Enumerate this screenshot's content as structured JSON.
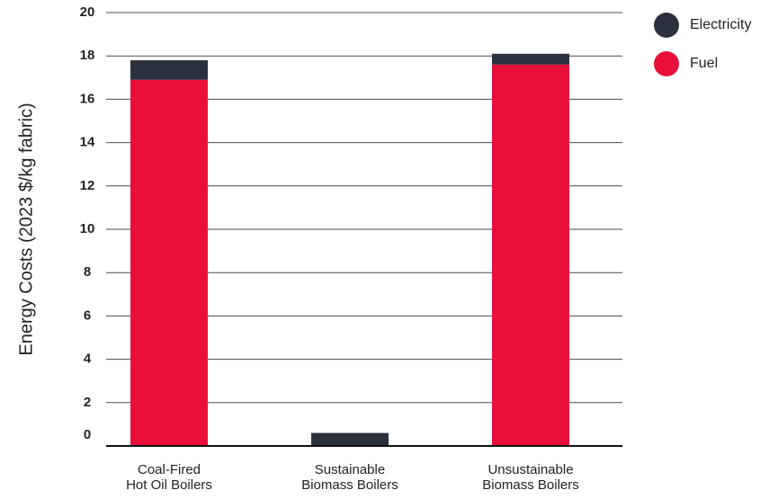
{
  "chart_data": {
    "type": "bar",
    "stacked": true,
    "categories": [
      [
        "Coal-Fired",
        "Hot Oil Boilers"
      ],
      [
        "Sustainable",
        "Biomass Boilers"
      ],
      [
        "Unsustainable",
        "Biomass Boilers"
      ]
    ],
    "series": [
      {
        "name": "Fuel",
        "color": "#E8103A",
        "values": [
          16.9,
          0,
          17.6
        ]
      },
      {
        "name": "Electricity",
        "color": "#2B323D",
        "values": [
          0.9,
          0.6,
          0.5
        ]
      }
    ],
    "legend_order": [
      "Electricity",
      "Fuel"
    ],
    "ylabel": "Energy Costs (2023 $/kg fabric)",
    "xlabel": "",
    "title": "",
    "ylim": [
      0,
      20
    ],
    "yticks": [
      0,
      2,
      4,
      6,
      8,
      10,
      12,
      14,
      16,
      18,
      20
    ],
    "grid": true,
    "legend_position": "top-right"
  }
}
